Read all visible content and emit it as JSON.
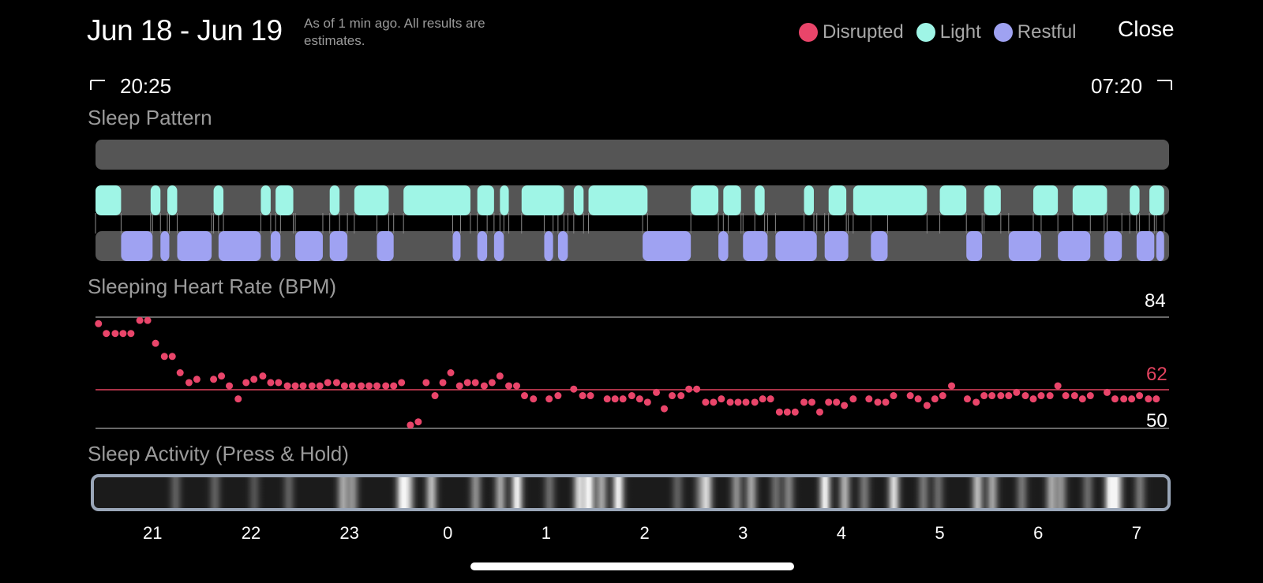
{
  "header": {
    "title": "Jun 18 - Jun 19",
    "as_of": "As of 1 min ago. All results are estimates.",
    "close_label": "Close"
  },
  "legend": [
    {
      "label": "Disrupted",
      "color": "#e9456a"
    },
    {
      "label": "Light",
      "color": "#9ff5e6"
    },
    {
      "label": "Restful",
      "color": "#9fa2f2"
    }
  ],
  "range": {
    "start_time": "20:25",
    "end_time": "07:20",
    "start_bracket": "⌐",
    "end_bracket": "¬"
  },
  "sections": {
    "sleep_pattern": "Sleep Pattern",
    "heart_rate": "Sleeping Heart Rate (BPM)",
    "activity": "Sleep Activity (Press & Hold)"
  },
  "heart_rate_labels": {
    "max": "84",
    "avg": "62",
    "min": "50"
  },
  "sleep_pattern_data": {
    "time_range_hours": [
      20.42,
      31.33
    ],
    "disrupted": [],
    "light": [
      [
        20.42,
        20.68
      ],
      [
        20.98,
        21.08
      ],
      [
        21.15,
        21.25
      ],
      [
        21.62,
        21.72
      ],
      [
        22.1,
        22.2
      ],
      [
        22.25,
        22.43
      ],
      [
        22.8,
        22.9
      ],
      [
        23.05,
        23.4
      ],
      [
        23.55,
        24.23
      ],
      [
        24.3,
        24.47
      ],
      [
        24.53,
        24.62
      ],
      [
        24.75,
        25.18
      ],
      [
        25.28,
        25.38
      ],
      [
        25.43,
        26.03
      ],
      [
        26.47,
        26.75
      ],
      [
        26.8,
        26.98
      ],
      [
        27.12,
        27.22
      ],
      [
        27.62,
        27.72
      ],
      [
        27.87,
        28.05
      ],
      [
        28.12,
        28.87
      ],
      [
        29.0,
        29.27
      ],
      [
        29.45,
        29.62
      ],
      [
        29.95,
        30.2
      ],
      [
        30.35,
        30.7
      ],
      [
        30.93,
        31.03
      ],
      [
        31.13,
        31.28
      ]
    ],
    "restful": [
      [
        20.68,
        21.0
      ],
      [
        21.08,
        21.17
      ],
      [
        21.25,
        21.6
      ],
      [
        21.67,
        22.1
      ],
      [
        22.2,
        22.3
      ],
      [
        22.45,
        22.73
      ],
      [
        22.8,
        22.98
      ],
      [
        23.28,
        23.45
      ],
      [
        24.05,
        24.13
      ],
      [
        24.3,
        24.4
      ],
      [
        24.47,
        24.57
      ],
      [
        24.98,
        25.07
      ],
      [
        25.12,
        25.22
      ],
      [
        25.98,
        26.47
      ],
      [
        26.75,
        26.85
      ],
      [
        27.0,
        27.25
      ],
      [
        27.33,
        27.75
      ],
      [
        27.83,
        28.07
      ],
      [
        28.3,
        28.47
      ],
      [
        29.27,
        29.43
      ],
      [
        29.7,
        30.03
      ],
      [
        30.2,
        30.53
      ],
      [
        30.67,
        30.85
      ],
      [
        31.0,
        31.18
      ],
      [
        31.2,
        31.28
      ]
    ]
  },
  "heart_rate_chart": {
    "ymin": 50,
    "ymax": 84,
    "avg": 62,
    "points": [
      [
        20.45,
        82
      ],
      [
        20.53,
        79
      ],
      [
        20.62,
        79
      ],
      [
        20.7,
        79
      ],
      [
        20.78,
        79
      ],
      [
        20.87,
        83
      ],
      [
        20.95,
        83
      ],
      [
        21.03,
        76
      ],
      [
        21.12,
        72
      ],
      [
        21.2,
        72
      ],
      [
        21.28,
        67
      ],
      [
        21.37,
        64
      ],
      [
        21.45,
        65
      ],
      [
        21.62,
        65
      ],
      [
        21.7,
        66
      ],
      [
        21.78,
        63
      ],
      [
        21.87,
        59
      ],
      [
        21.95,
        64
      ],
      [
        22.03,
        65
      ],
      [
        22.12,
        66
      ],
      [
        22.2,
        64
      ],
      [
        22.28,
        64
      ],
      [
        22.37,
        63
      ],
      [
        22.45,
        63
      ],
      [
        22.53,
        63
      ],
      [
        22.62,
        63
      ],
      [
        22.7,
        63
      ],
      [
        22.78,
        64
      ],
      [
        22.87,
        64
      ],
      [
        22.95,
        63
      ],
      [
        23.03,
        63
      ],
      [
        23.12,
        63
      ],
      [
        23.2,
        63
      ],
      [
        23.28,
        63
      ],
      [
        23.37,
        63
      ],
      [
        23.45,
        63
      ],
      [
        23.53,
        64
      ],
      [
        23.62,
        51
      ],
      [
        23.7,
        52
      ],
      [
        23.78,
        64
      ],
      [
        23.87,
        60
      ],
      [
        23.95,
        64
      ],
      [
        24.03,
        67
      ],
      [
        24.12,
        63
      ],
      [
        24.2,
        64
      ],
      [
        24.28,
        64
      ],
      [
        24.37,
        63
      ],
      [
        24.45,
        64
      ],
      [
        24.53,
        66
      ],
      [
        24.62,
        63
      ],
      [
        24.7,
        63
      ],
      [
        24.78,
        60
      ],
      [
        24.87,
        59
      ],
      [
        25.03,
        59
      ],
      [
        25.12,
        60
      ],
      [
        25.28,
        62
      ],
      [
        25.37,
        60
      ],
      [
        25.45,
        60
      ],
      [
        25.62,
        59
      ],
      [
        25.7,
        59
      ],
      [
        25.78,
        59
      ],
      [
        25.87,
        60
      ],
      [
        25.95,
        59
      ],
      [
        26.03,
        58
      ],
      [
        26.12,
        61
      ],
      [
        26.2,
        56
      ],
      [
        26.28,
        60
      ],
      [
        26.37,
        60
      ],
      [
        26.45,
        62
      ],
      [
        26.53,
        62
      ],
      [
        26.62,
        58
      ],
      [
        26.7,
        58
      ],
      [
        26.78,
        59
      ],
      [
        26.87,
        58
      ],
      [
        26.95,
        58
      ],
      [
        27.03,
        58
      ],
      [
        27.12,
        58
      ],
      [
        27.2,
        59
      ],
      [
        27.28,
        59
      ],
      [
        27.37,
        55
      ],
      [
        27.45,
        55
      ],
      [
        27.53,
        55
      ],
      [
        27.62,
        58
      ],
      [
        27.7,
        58
      ],
      [
        27.78,
        55
      ],
      [
        27.87,
        58
      ],
      [
        27.95,
        58
      ],
      [
        28.03,
        57
      ],
      [
        28.12,
        59
      ],
      [
        28.28,
        59
      ],
      [
        28.37,
        58
      ],
      [
        28.45,
        58
      ],
      [
        28.53,
        60
      ],
      [
        28.7,
        60
      ],
      [
        28.78,
        59
      ],
      [
        28.87,
        57
      ],
      [
        28.95,
        59
      ],
      [
        29.03,
        60
      ],
      [
        29.12,
        63
      ],
      [
        29.28,
        59
      ],
      [
        29.37,
        58
      ],
      [
        29.45,
        60
      ],
      [
        29.53,
        60
      ],
      [
        29.62,
        60
      ],
      [
        29.7,
        60
      ],
      [
        29.78,
        61
      ],
      [
        29.87,
        60
      ],
      [
        29.95,
        59
      ],
      [
        30.03,
        60
      ],
      [
        30.12,
        60
      ],
      [
        30.2,
        63
      ],
      [
        30.28,
        60
      ],
      [
        30.37,
        60
      ],
      [
        30.45,
        59
      ],
      [
        30.53,
        60
      ],
      [
        30.7,
        61
      ],
      [
        30.78,
        59
      ],
      [
        30.87,
        59
      ],
      [
        30.95,
        59
      ],
      [
        31.03,
        60
      ],
      [
        31.12,
        59
      ],
      [
        31.2,
        59
      ]
    ]
  },
  "activity_data": {
    "intensity_peaks": [
      [
        21.25,
        0.3
      ],
      [
        21.65,
        0.3
      ],
      [
        22.05,
        0.25
      ],
      [
        22.4,
        0.3
      ],
      [
        22.95,
        0.6
      ],
      [
        23.05,
        0.5
      ],
      [
        23.55,
        0.85
      ],
      [
        23.62,
        0.6
      ],
      [
        23.85,
        0.7
      ],
      [
        24.3,
        0.5
      ],
      [
        24.55,
        0.6
      ],
      [
        24.72,
        0.95
      ],
      [
        25.05,
        0.35
      ],
      [
        25.35,
        0.8
      ],
      [
        25.45,
        0.95
      ],
      [
        25.58,
        0.6
      ],
      [
        25.75,
        0.95
      ],
      [
        26.35,
        0.3
      ],
      [
        26.58,
        0.35
      ],
      [
        26.65,
        0.75
      ],
      [
        26.95,
        0.5
      ],
      [
        27.1,
        0.6
      ],
      [
        27.35,
        0.35
      ],
      [
        27.48,
        0.45
      ],
      [
        27.85,
        0.95
      ],
      [
        28.05,
        0.65
      ],
      [
        28.25,
        0.4
      ],
      [
        28.55,
        0.85
      ],
      [
        28.85,
        0.4
      ],
      [
        29.0,
        0.35
      ],
      [
        29.4,
        0.7
      ],
      [
        29.55,
        0.6
      ],
      [
        29.85,
        0.4
      ],
      [
        30.15,
        0.6
      ],
      [
        30.25,
        0.5
      ],
      [
        30.52,
        0.35
      ],
      [
        30.75,
        0.95
      ],
      [
        30.82,
        0.7
      ],
      [
        31.05,
        0.4
      ]
    ]
  },
  "axis": {
    "ticks": [
      {
        "label": "21",
        "hour": 21
      },
      {
        "label": "22",
        "hour": 22
      },
      {
        "label": "23",
        "hour": 23
      },
      {
        "label": "0",
        "hour": 24
      },
      {
        "label": "1",
        "hour": 25
      },
      {
        "label": "2",
        "hour": 26
      },
      {
        "label": "3",
        "hour": 27
      },
      {
        "label": "4",
        "hour": 28
      },
      {
        "label": "5",
        "hour": 29
      },
      {
        "label": "6",
        "hour": 30
      },
      {
        "label": "7",
        "hour": 31
      }
    ]
  }
}
